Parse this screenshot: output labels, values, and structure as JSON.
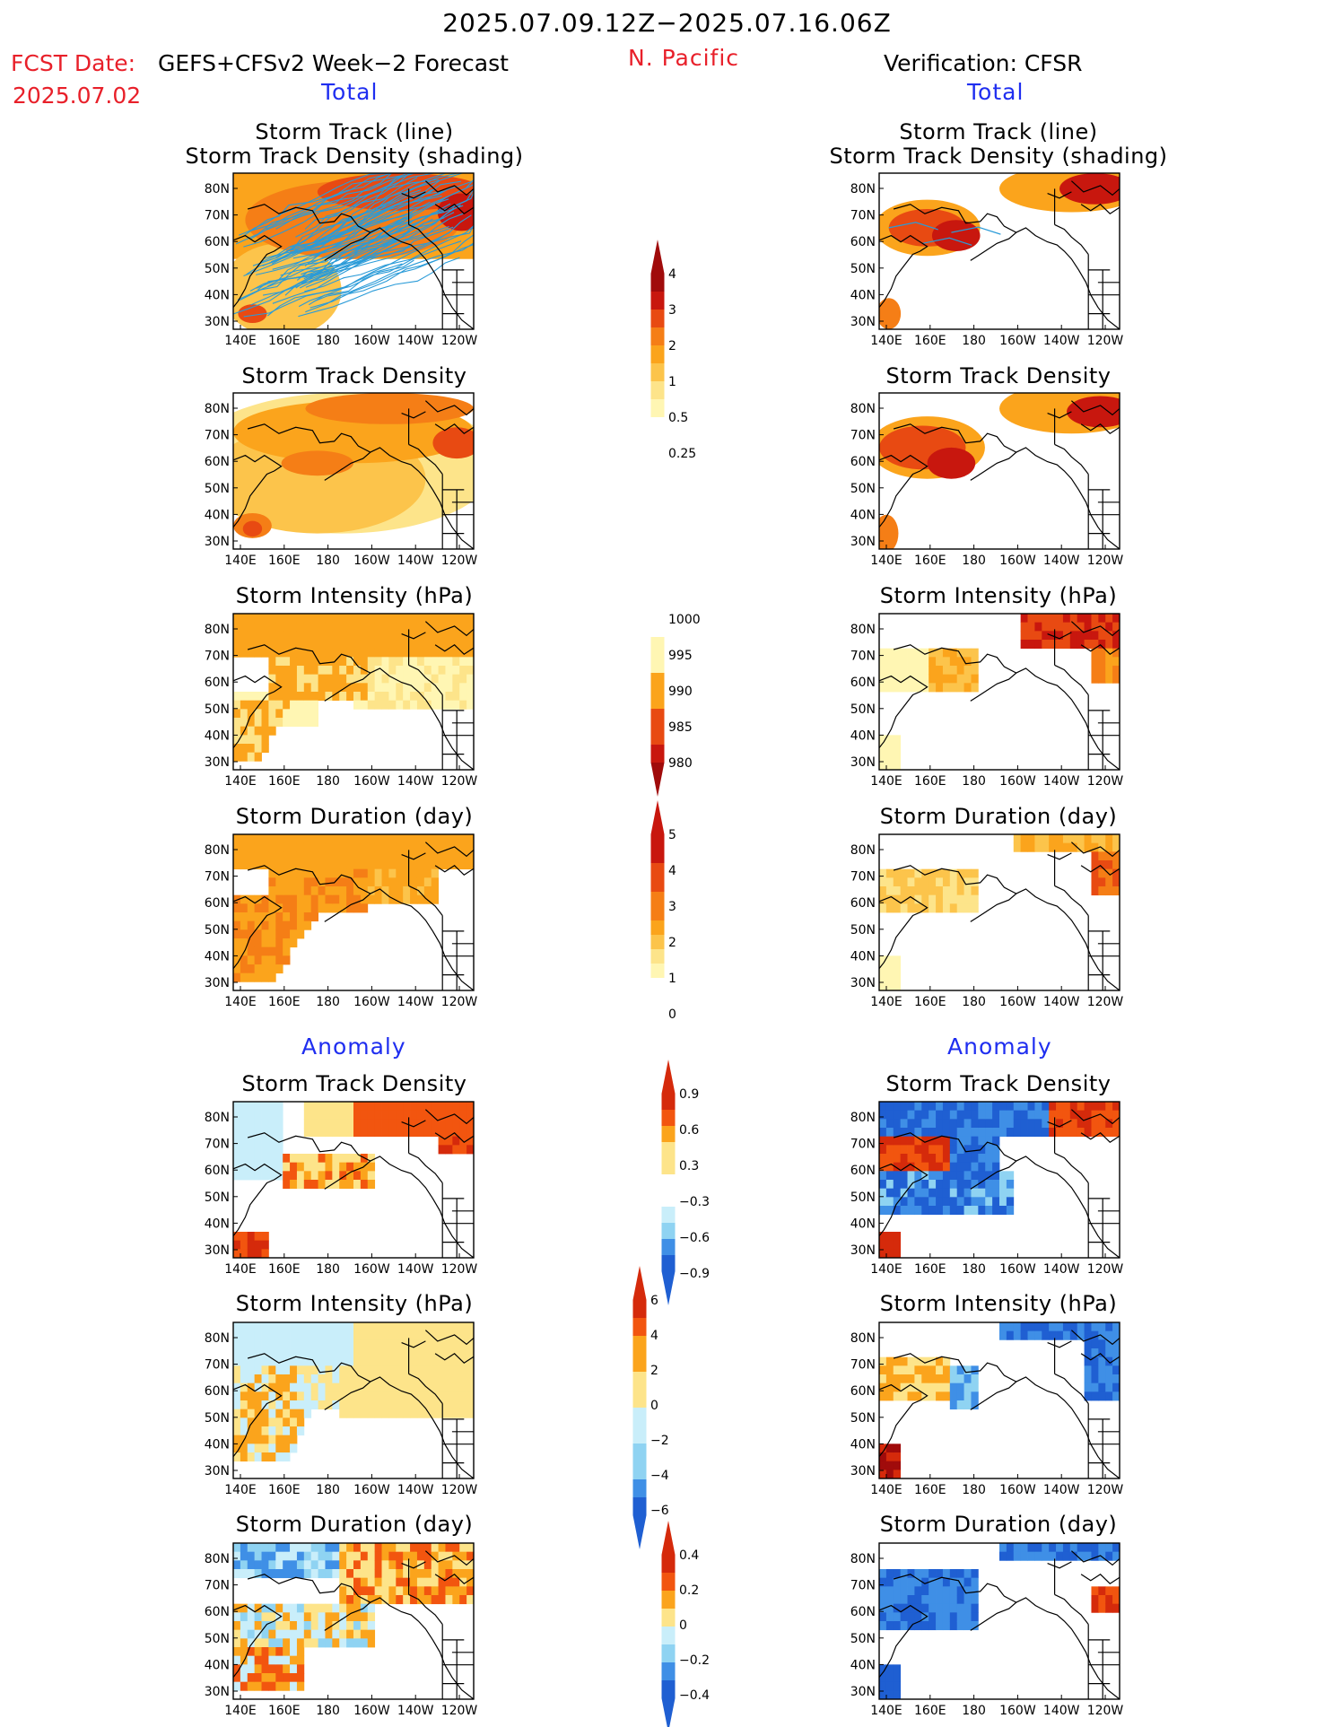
{
  "header": {
    "title": "2025.07.09.12Z−2025.07.16.06Z",
    "fcst_label": "FCST Date:",
    "fcst_model": "GEFS+CFSv2 Week−2 Forecast",
    "fcst_date": "2025.07.02",
    "region": "N. Pacific",
    "verification": "Verification: CFSR"
  },
  "sections": {
    "total": "Total",
    "anomaly": "Anomaly"
  },
  "panel_titles": {
    "track_line": "Storm Track (line)",
    "track_shading": "Storm Track Density (shading)",
    "density": "Storm Track Density",
    "intensity": "Storm Intensity (hPa)",
    "duration": "Storm Duration (day)"
  },
  "axes": {
    "lon_ticks": [
      "140E",
      "160E",
      "180",
      "160W",
      "140W",
      "120W"
    ],
    "lat_ticks": [
      "80N",
      "70N",
      "60N",
      "50N",
      "40N",
      "30N"
    ]
  },
  "colorbars": [
    {
      "id": "density-total",
      "labels": [
        "4",
        "3",
        "2",
        "1",
        "0.5",
        "0.25"
      ]
    },
    {
      "id": "intensity-total",
      "labels": [
        "1000",
        "995",
        "990",
        "985",
        "980"
      ]
    },
    {
      "id": "duration-total",
      "labels": [
        "5",
        "4",
        "3",
        "2",
        "1",
        "0"
      ]
    },
    {
      "id": "density-anom",
      "labels": [
        "0.9",
        "0.6",
        "0.3",
        "−0.3",
        "−0.6",
        "−0.9"
      ]
    },
    {
      "id": "intensity-anom",
      "labels": [
        "6",
        "4",
        "2",
        "0",
        "−2",
        "−4",
        "−6"
      ]
    },
    {
      "id": "duration-anom",
      "labels": [
        "0.4",
        "0.2",
        "0",
        "−0.2",
        "−0.4"
      ]
    }
  ],
  "colors": {
    "red_text": "#e8202a",
    "blue_text": "#1f2ef0",
    "track_line": "#2a9bd8",
    "warm_scale": [
      "#fff6b3",
      "#fde48a",
      "#fcc44b",
      "#fba41c",
      "#f57e16",
      "#e84a12",
      "#c8170e",
      "#a00b0b"
    ],
    "anom_warm": [
      "#fde48a",
      "#fba41c",
      "#f2550f",
      "#d52a0b"
    ],
    "anom_cool": [
      "#c9eefa",
      "#8fd3f2",
      "#3f8fe6",
      "#1f5fd2"
    ]
  }
}
